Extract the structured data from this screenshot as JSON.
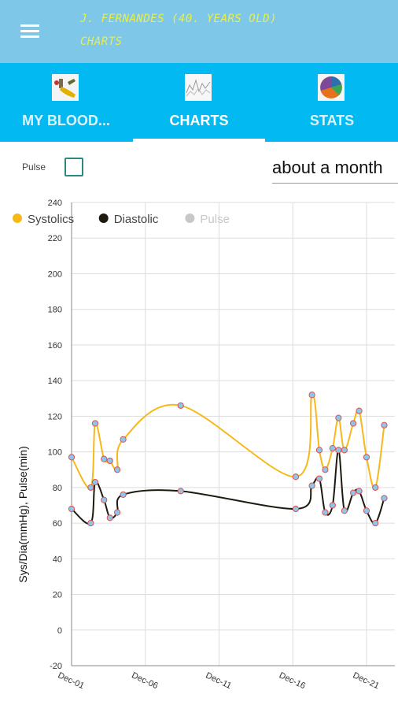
{
  "app_bar": {
    "user_line": "J. FERNANDES (40. YEARS OLD)",
    "section_line": "CHARTS",
    "menu_icon": "hamburger-menu-icon"
  },
  "tabs": [
    {
      "label": "MY BLOOD...",
      "icon": "blood-pressure-cuff-icon",
      "active": false
    },
    {
      "label": "CHARTS",
      "icon": "line-chart-icon",
      "active": true
    },
    {
      "label": "STATS",
      "icon": "pie-chart-icon",
      "active": false
    }
  ],
  "controls": {
    "pulse_label": "Pulse",
    "pulse_checked": false,
    "range_value": "about a month"
  },
  "chart_data": {
    "type": "line",
    "ylabel": "Sys/Dia(mmHg), Pulse(min)",
    "ylim": [
      -20,
      240
    ],
    "yticks": [
      -20,
      0,
      20,
      40,
      60,
      80,
      100,
      120,
      140,
      160,
      180,
      200,
      220,
      240
    ],
    "xlim": [
      1,
      22
    ],
    "xticks": [
      {
        "label": "Dec-01",
        "day": 1
      },
      {
        "label": "Dec-06",
        "day": 6
      },
      {
        "label": "Dec-11",
        "day": 11
      },
      {
        "label": "Dec-16",
        "day": 16
      },
      {
        "label": "Dec-21",
        "day": 21
      }
    ],
    "legend": [
      "Systolics",
      "Diastolic",
      "Pulse"
    ],
    "legend_placement": "top-left",
    "grid": true,
    "colors": {
      "systolic": "#f7b81b",
      "diastolic": "#1e1a10",
      "pulse": "#c8c8c8",
      "marker_fill": "#8fc5ea",
      "marker_edge": "#d9534f"
    },
    "series": [
      {
        "name": "Systolics",
        "enabled": true,
        "points": [
          [
            1.0,
            97
          ],
          [
            2.3,
            80
          ],
          [
            2.6,
            116
          ],
          [
            3.2,
            96
          ],
          [
            3.6,
            95
          ],
          [
            4.1,
            90
          ],
          [
            4.5,
            107
          ],
          [
            8.4,
            126
          ],
          [
            16.2,
            86
          ],
          [
            17.3,
            132
          ],
          [
            17.8,
            101
          ],
          [
            18.2,
            90
          ],
          [
            18.7,
            102
          ],
          [
            19.1,
            119
          ],
          [
            19.5,
            101
          ],
          [
            20.1,
            116
          ],
          [
            20.5,
            123
          ],
          [
            21.0,
            97
          ],
          [
            21.6,
            80
          ],
          [
            22.2,
            115
          ]
        ]
      },
      {
        "name": "Diastolic",
        "enabled": true,
        "points": [
          [
            1.0,
            68
          ],
          [
            2.3,
            60
          ],
          [
            2.6,
            83
          ],
          [
            3.2,
            73
          ],
          [
            3.6,
            63
          ],
          [
            4.1,
            66
          ],
          [
            4.5,
            76
          ],
          [
            8.4,
            78
          ],
          [
            16.2,
            68
          ],
          [
            17.3,
            81
          ],
          [
            17.8,
            85
          ],
          [
            18.2,
            66
          ],
          [
            18.7,
            70
          ],
          [
            19.1,
            101
          ],
          [
            19.5,
            67
          ],
          [
            20.1,
            77
          ],
          [
            20.5,
            78
          ],
          [
            21.0,
            67
          ],
          [
            21.6,
            60
          ],
          [
            22.2,
            74
          ]
        ]
      },
      {
        "name": "Pulse",
        "enabled": false,
        "points": []
      }
    ]
  }
}
